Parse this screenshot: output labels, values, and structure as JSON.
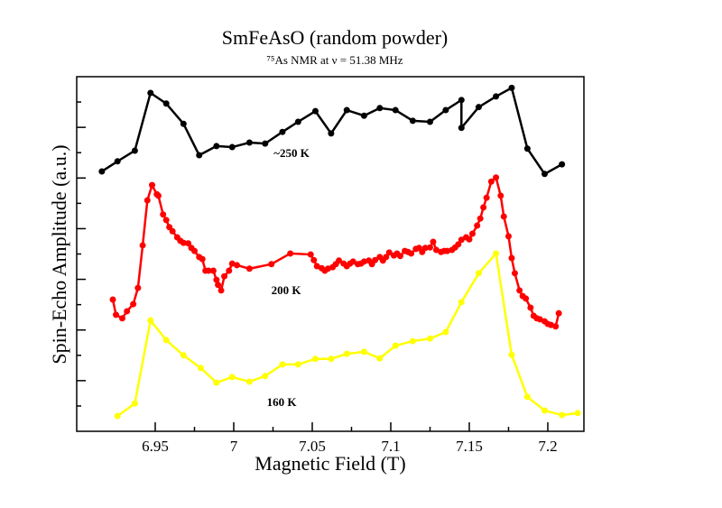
{
  "chart_data": {
    "type": "line",
    "title": "SmFeAsO (random powder)",
    "subtitle": "⁷⁵As NMR at ν = 51.38 MHz",
    "x_label": "Magnetic Field (T)",
    "y_label": "Spin-Echo Amplitude (a.u.)",
    "xlim": [
      6.9,
      7.223
    ],
    "xticks": [
      6.95,
      7,
      7.05,
      7.1,
      7.15,
      7.2
    ],
    "ylim": [
      0,
      7
    ],
    "yticks": [
      1,
      2,
      3,
      4,
      5,
      6
    ],
    "series": [
      {
        "name": "~250 K",
        "color": "#000000",
        "x": [
          6.916,
          6.926,
          6.937,
          6.947,
          6.957,
          6.968,
          6.978,
          6.989,
          6.999,
          7.01,
          7.02,
          7.031,
          7.041,
          7.052,
          7.062,
          7.072,
          7.083,
          7.093,
          7.103,
          7.114,
          7.125,
          7.135,
          7.145,
          7.145,
          7.156,
          7.167,
          7.177,
          7.187,
          7.198,
          7.209
        ],
        "values": [
          5.13,
          5.33,
          5.54,
          6.68,
          6.47,
          6.07,
          5.45,
          5.63,
          5.61,
          5.7,
          5.68,
          5.91,
          6.11,
          6.32,
          5.88,
          6.34,
          6.23,
          6.38,
          6.34,
          6.13,
          6.11,
          6.34,
          6.54,
          5.99,
          6.4,
          6.61,
          6.78,
          5.58,
          5.08,
          5.27
        ]
      },
      {
        "name": "200 K",
        "color": "#ff0000",
        "x": [
          6.923,
          6.925,
          6.929,
          6.932,
          6.936,
          6.939,
          6.942,
          6.945,
          6.948,
          6.951,
          6.952,
          6.955,
          6.957,
          6.959,
          6.961,
          6.964,
          6.966,
          6.968,
          6.971,
          6.973,
          6.975,
          6.978,
          6.98,
          6.982,
          6.984,
          6.987,
          6.989,
          6.99,
          6.992,
          6.994,
          6.997,
          6.999,
          7.002,
          7.01,
          7.024,
          7.036,
          7.049,
          7.051,
          7.053,
          7.056,
          7.058,
          7.06,
          7.063,
          7.065,
          7.067,
          7.07,
          7.072,
          7.074,
          7.076,
          7.079,
          7.081,
          7.083,
          7.086,
          7.088,
          7.09,
          7.093,
          7.095,
          7.097,
          7.099,
          7.102,
          7.104,
          7.106,
          7.109,
          7.111,
          7.113,
          7.116,
          7.118,
          7.12,
          7.122,
          7.125,
          7.127,
          7.129,
          7.132,
          7.134,
          7.136,
          7.139,
          7.141,
          7.143,
          7.145,
          7.148,
          7.15,
          7.152,
          7.155,
          7.157,
          7.159,
          7.161,
          7.164,
          7.167,
          7.17,
          7.172,
          7.175,
          7.177,
          7.179,
          7.182,
          7.184,
          7.186,
          7.189,
          7.191,
          7.193,
          7.195,
          7.198,
          7.2,
          7.202,
          7.205,
          7.207
        ],
        "values": [
          2.6,
          2.3,
          2.23,
          2.37,
          2.51,
          2.83,
          3.67,
          4.56,
          4.86,
          4.68,
          4.65,
          4.28,
          4.17,
          4.03,
          3.95,
          3.83,
          3.76,
          3.72,
          3.71,
          3.62,
          3.56,
          3.44,
          3.4,
          3.17,
          3.17,
          3.17,
          2.99,
          2.89,
          2.78,
          3.06,
          3.17,
          3.31,
          3.28,
          3.21,
          3.3,
          3.51,
          3.49,
          3.38,
          3.26,
          3.22,
          3.17,
          3.21,
          3.24,
          3.3,
          3.37,
          3.31,
          3.26,
          3.31,
          3.35,
          3.3,
          3.31,
          3.35,
          3.37,
          3.3,
          3.38,
          3.44,
          3.37,
          3.44,
          3.53,
          3.47,
          3.51,
          3.46,
          3.56,
          3.54,
          3.51,
          3.6,
          3.62,
          3.54,
          3.62,
          3.63,
          3.74,
          3.58,
          3.54,
          3.56,
          3.56,
          3.58,
          3.63,
          3.69,
          3.78,
          3.83,
          3.79,
          3.9,
          4.06,
          4.2,
          4.42,
          4.61,
          4.93,
          5.01,
          4.65,
          4.24,
          3.85,
          3.42,
          3.12,
          2.78,
          2.67,
          2.62,
          2.44,
          2.28,
          2.23,
          2.21,
          2.17,
          2.12,
          2.1,
          2.07,
          2.33
        ]
      },
      {
        "name": "160 K",
        "color": "#ffff00",
        "x": [
          6.926,
          6.937,
          6.947,
          6.957,
          6.968,
          6.979,
          6.989,
          6.999,
          7.01,
          7.02,
          7.031,
          7.041,
          7.052,
          7.062,
          7.072,
          7.083,
          7.093,
          7.103,
          7.114,
          7.125,
          7.135,
          7.145,
          7.156,
          7.167,
          7.177,
          7.187,
          7.198,
          7.209,
          7.219
        ],
        "values": [
          0.3,
          0.55,
          2.19,
          1.8,
          1.5,
          1.25,
          0.96,
          1.07,
          0.98,
          1.09,
          1.32,
          1.32,
          1.43,
          1.43,
          1.53,
          1.57,
          1.44,
          1.69,
          1.78,
          1.83,
          1.96,
          2.55,
          3.12,
          3.51,
          1.51,
          0.68,
          0.41,
          0.32,
          0.36
        ]
      }
    ]
  }
}
